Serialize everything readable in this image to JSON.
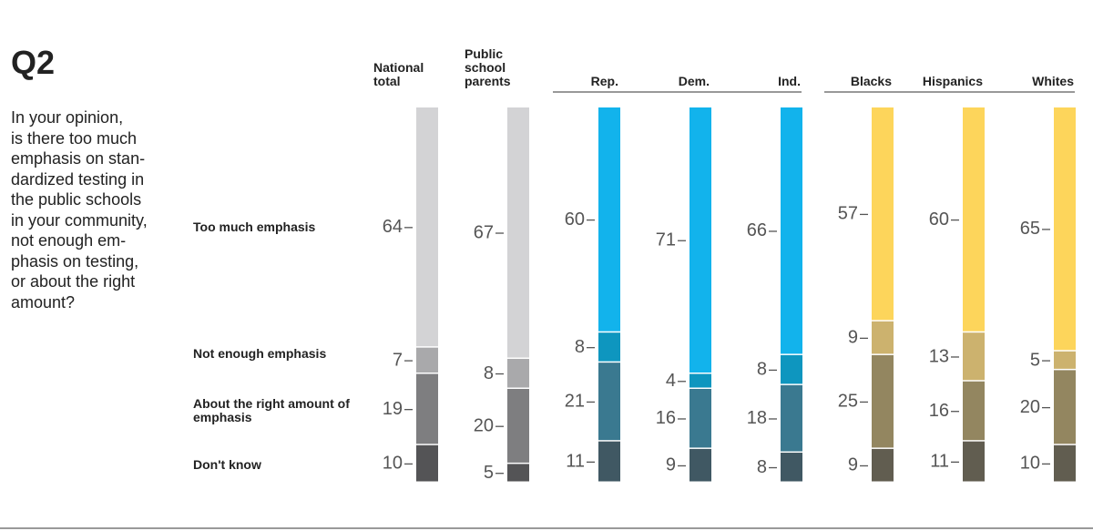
{
  "title": "Q2",
  "question": [
    "In your opinion,",
    "is there too much",
    "emphasis on stan-",
    "dardized testing in",
    "the public schools",
    "in your community,",
    "not enough em-",
    "phasis on testing,",
    "or about the right",
    "amount?"
  ],
  "chart_data": {
    "type": "stacked-bar",
    "categories": [
      "National total",
      "Public school parents",
      "Rep.",
      "Dem.",
      "Ind.",
      "Blacks",
      "Hispanics",
      "Whites"
    ],
    "ylim": [
      0,
      100
    ],
    "series": [
      {
        "name": "Too much emphasis",
        "values": [
          64,
          67,
          60,
          71,
          66,
          57,
          60,
          65
        ],
        "colors": [
          "#d3d3d5",
          "#d3d3d5",
          "#12b3ec",
          "#12b3ec",
          "#12b3ec",
          "#fdd55b",
          "#fdd55b",
          "#fdd55b"
        ]
      },
      {
        "name": "Not enough emphasis",
        "values": [
          7,
          8,
          8,
          4,
          8,
          9,
          13,
          5
        ],
        "colors": [
          "#a9a9ab",
          "#a9a9ab",
          "#0e96bf",
          "#0e96bf",
          "#0e96bf",
          "#ccb26e",
          "#ccb26e",
          "#ccb26e"
        ]
      },
      {
        "name": "About the right amount of emphasis",
        "values": [
          19,
          20,
          21,
          16,
          18,
          25,
          16,
          20
        ],
        "colors": [
          "#7e7e80",
          "#7e7e80",
          "#3a7990",
          "#3a7990",
          "#3a7990",
          "#938660",
          "#938660",
          "#938660"
        ]
      },
      {
        "name": "Don't know",
        "values": [
          10,
          5,
          11,
          9,
          8,
          9,
          11,
          10
        ],
        "colors": [
          "#545456",
          "#545456",
          "#405863",
          "#405863",
          "#405863",
          "#615d50",
          "#615d50",
          "#615d50"
        ]
      }
    ]
  }
}
